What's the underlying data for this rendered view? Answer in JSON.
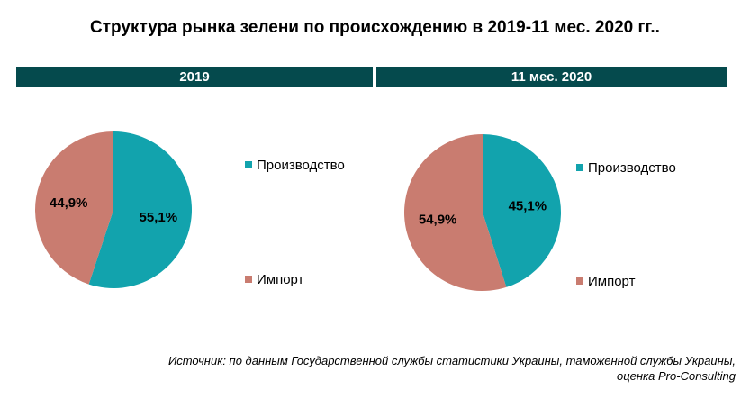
{
  "title": "Структура рынка зелени по происхождению в 2019-11 мес. 2020 гг..",
  "colors": {
    "band": "#054a4d",
    "production": "#12a3ad",
    "import": "#c97c70"
  },
  "chart_data": [
    {
      "type": "pie",
      "title": "2019",
      "categories": [
        "Производство",
        "Импорт"
      ],
      "values": [
        55.1,
        44.9
      ],
      "labels": [
        "55,1%",
        "44,9%"
      ],
      "legend": [
        "Производство",
        "Импорт"
      ],
      "legend_position": "right"
    },
    {
      "type": "pie",
      "title": "11 мес. 2020",
      "categories": [
        "Производство",
        "Импорт"
      ],
      "values": [
        45.1,
        54.9
      ],
      "labels": [
        "45,1%",
        "54,9%"
      ],
      "legend": [
        "Производство",
        "Импорт"
      ],
      "legend_position": "right"
    }
  ],
  "source": {
    "line1": "Источник: по данным Государственной службы статистики Украины, таможенной службы Украины,",
    "line2": "оценка Pro-Consulting"
  }
}
